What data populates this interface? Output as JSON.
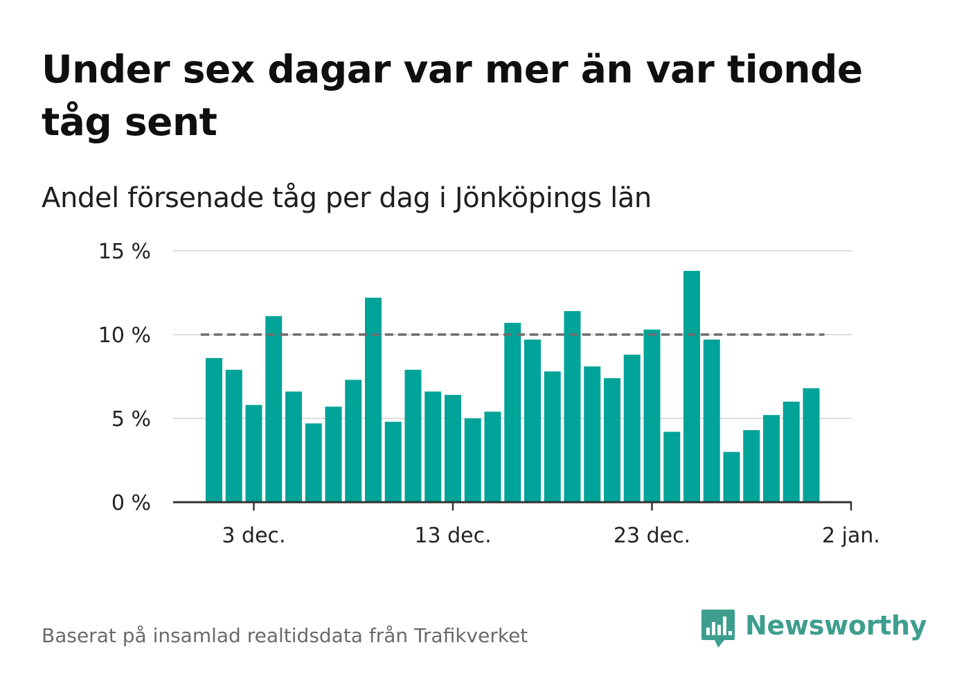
{
  "title": "Under sex dagar var mer än var tionde tåg sent",
  "subtitle": "Andel försenade tåg per dag i Jönköpings län",
  "source": "Baserat på insamlad realtidsdata från Trafikverket",
  "logo": {
    "name": "Newsworthy",
    "icon": "bar-chart-speech-bubble-icon"
  },
  "colors": {
    "bar": "#00a398",
    "reference_line": "#6d6d6d",
    "grid": "#dddddd",
    "axis": "#333333",
    "logo": "#3d9e8e"
  },
  "chart_data": {
    "type": "bar",
    "x": [
      "2020-12-01",
      "2020-12-02",
      "2020-12-03",
      "2020-12-04",
      "2020-12-05",
      "2020-12-06",
      "2020-12-07",
      "2020-12-08",
      "2020-12-09",
      "2020-12-10",
      "2020-12-11",
      "2020-12-12",
      "2020-12-13",
      "2020-12-14",
      "2020-12-15",
      "2020-12-16",
      "2020-12-17",
      "2020-12-18",
      "2020-12-19",
      "2020-12-20",
      "2020-12-21",
      "2020-12-22",
      "2020-12-23",
      "2020-12-24",
      "2020-12-25",
      "2020-12-26",
      "2020-12-27",
      "2020-12-28",
      "2020-12-29",
      "2020-12-30",
      "2020-12-31",
      "2021-01-01"
    ],
    "values": [
      8.6,
      7.9,
      5.8,
      11.1,
      6.6,
      4.7,
      5.7,
      7.3,
      12.2,
      4.8,
      7.9,
      6.6,
      6.4,
      5.0,
      5.4,
      10.7,
      9.7,
      7.8,
      11.4,
      8.1,
      7.4,
      8.8,
      10.3,
      4.2,
      13.8,
      9.7,
      3.0,
      4.3,
      5.2,
      6.0,
      6.8,
      null
    ],
    "ylim": [
      0,
      15
    ],
    "yticks": [
      0,
      5,
      10,
      15
    ],
    "ytick_labels": [
      "0 %",
      "5 %",
      "10 %",
      "15 %"
    ],
    "xticks": [
      "2020-12-03",
      "2020-12-13",
      "2020-12-23",
      "2021-01-02"
    ],
    "xtick_labels": [
      "3 dec.",
      "13 dec.",
      "23 dec.",
      "2 jan."
    ],
    "reference_line": {
      "y": 10,
      "style": "dashed"
    },
    "grid": true,
    "xlabel": "",
    "ylabel": ""
  }
}
